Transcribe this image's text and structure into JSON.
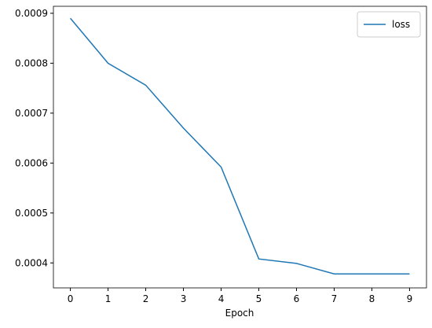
{
  "chart_data": {
    "type": "line",
    "x_label": "Epoch",
    "x": [
      0,
      1,
      2,
      3,
      4,
      5,
      6,
      7,
      8,
      9
    ],
    "series": [
      {
        "name": "loss",
        "color": "#1f77b4",
        "values": [
          0.00089,
          0.0008,
          0.000756,
          0.00067,
          0.000592,
          0.000408,
          0.000399,
          0.000378,
          0.000378,
          0.000378
        ]
      }
    ],
    "xlim": [
      -0.45,
      9.45
    ],
    "xticks": [
      0,
      1,
      2,
      3,
      4,
      5,
      6,
      7,
      8,
      9
    ],
    "ylim": [
      0.00035,
      0.000914
    ],
    "yticks": [
      0.0004,
      0.0005,
      0.0006,
      0.0007,
      0.0008,
      0.0009
    ],
    "grid": false,
    "legend": "upper right"
  }
}
